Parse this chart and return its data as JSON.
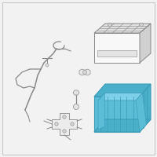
{
  "bg_color": "#f2f2f2",
  "border_color": "#c8c8c8",
  "line_color": "#888888",
  "tray_fill": "#5bbdd6",
  "tray_edge": "#3a9ab8",
  "tray_inner": "#4aafc8",
  "battery_fill": "#f8f8f8",
  "battery_edge": "#888888",
  "battery_top_fill": "#e0e0e0",
  "battery_right_fill": "#d0d0d0",
  "fig_width": 2.0,
  "fig_height": 2.0,
  "dpi": 100
}
